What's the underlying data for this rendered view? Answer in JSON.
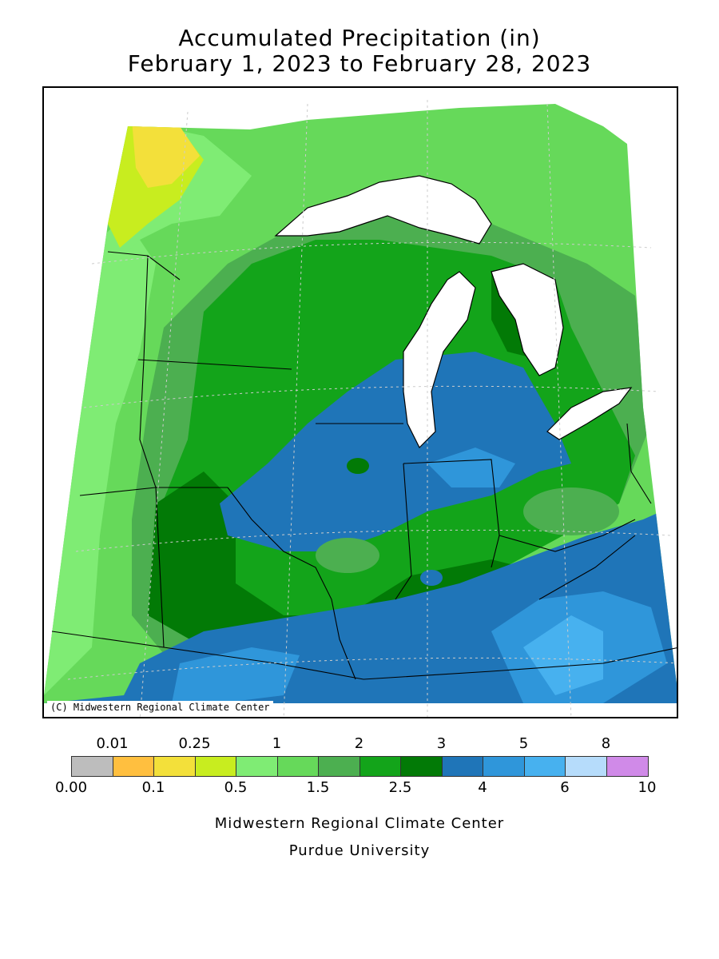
{
  "title": {
    "line1": "Accumulated Precipitation (in)",
    "line2": "February 1, 2023 to February 28, 2023"
  },
  "map": {
    "credit": "(C) Midwestern Regional Climate Center",
    "region": "Upper Midwest / Great Lakes"
  },
  "legend": {
    "top_labels": [
      "0.01",
      "0.25",
      "1",
      "2",
      "3",
      "5",
      "8"
    ],
    "bottom_labels": [
      "0.00",
      "0.1",
      "0.5",
      "1.5",
      "2.5",
      "4",
      "6",
      "10"
    ],
    "colors": [
      "#bdbdbd",
      "#ffbf3f",
      "#f3e03a",
      "#c8ed1f",
      "#7fec74",
      "#66d95a",
      "#4caf50",
      "#13a41a",
      "#027a06",
      "#1f75b8",
      "#2f96da",
      "#47b1ef",
      "#b6dcfb",
      "#d08ae8"
    ]
  },
  "footer": {
    "line1": "Midwestern Regional Climate Center",
    "line2": "Purdue University"
  }
}
